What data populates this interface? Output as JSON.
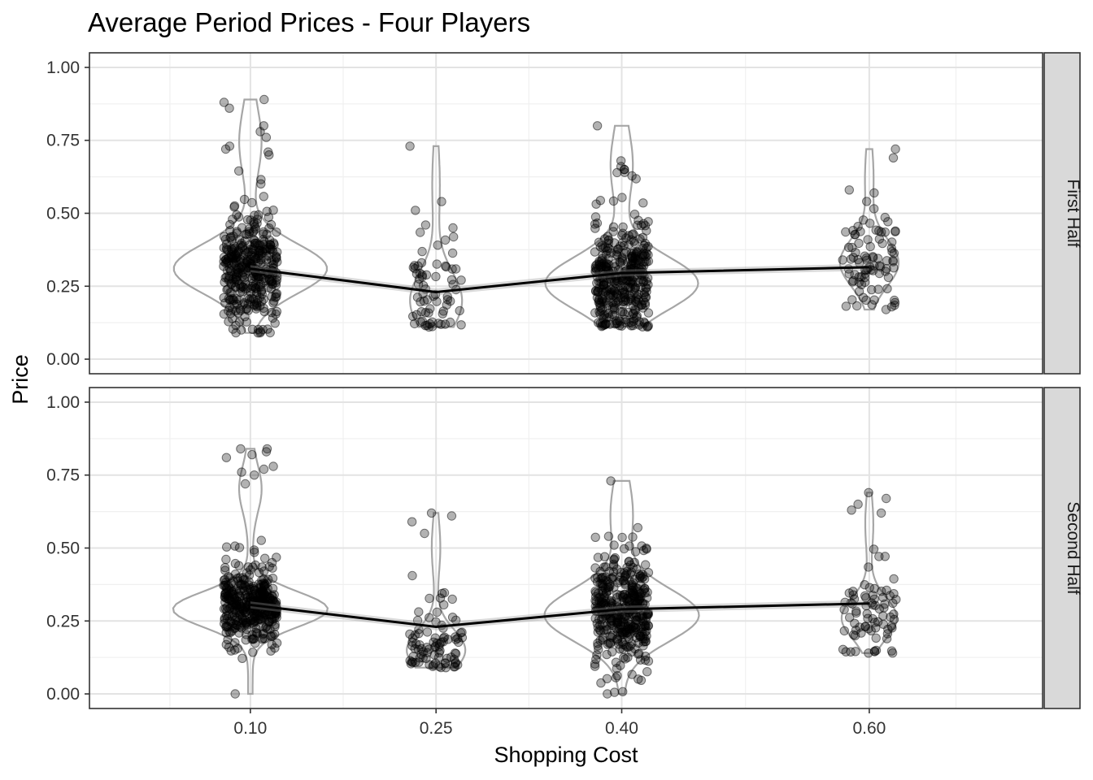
{
  "chart_data": {
    "type": "scatter",
    "title": "Average Period Prices - Four Players",
    "xlabel": "Shopping Cost",
    "ylabel": "Price",
    "categories": [
      "0.10",
      "0.25",
      "0.40",
      "0.60"
    ],
    "x_values": [
      0.1,
      0.25,
      0.4,
      0.6
    ],
    "xlim": [
      -0.03,
      0.74
    ],
    "ylim": [
      -0.05,
      1.05
    ],
    "y_ticks": [
      "0.00",
      "0.25",
      "0.50",
      "0.75",
      "1.00"
    ],
    "x_tick_values": [
      0.1,
      0.25,
      0.4,
      0.6
    ],
    "grid": true,
    "layers": [
      "violin",
      "jitter-points",
      "mean-line"
    ],
    "facets": [
      {
        "label": "First Half",
        "means": [
          0.31,
          0.23,
          0.295,
          0.315
        ],
        "clusters": [
          {
            "x": 0.1,
            "n": 380,
            "min": 0.09,
            "max": 0.89,
            "mode": 0.31,
            "spread": 0.085,
            "extreme_high": [
              0.89,
              0.88,
              0.86,
              0.8,
              0.78,
              0.76,
              0.73,
              0.72,
              0.71,
              0.7
            ]
          },
          {
            "x": 0.25,
            "n": 70,
            "min": 0.11,
            "max": 0.73,
            "mode": 0.2,
            "spread": 0.1,
            "extreme_high": [
              0.73,
              0.54,
              0.51,
              0.46,
              0.45
            ]
          },
          {
            "x": 0.4,
            "n": 380,
            "min": 0.11,
            "max": 0.8,
            "mode": 0.26,
            "spread": 0.09,
            "extreme_high": [
              0.8,
              0.68,
              0.66,
              0.65,
              0.65
            ]
          },
          {
            "x": 0.6,
            "n": 90,
            "min": 0.17,
            "max": 0.72,
            "mode": 0.33,
            "spread": 0.08,
            "extreme_high": [
              0.72,
              0.69,
              0.58,
              0.57
            ]
          }
        ]
      },
      {
        "label": "Second Half",
        "means": [
          0.305,
          0.23,
          0.29,
          0.31
        ],
        "clusters": [
          {
            "x": 0.1,
            "n": 400,
            "min": 0.0,
            "max": 0.84,
            "mode": 0.29,
            "spread": 0.06,
            "extreme_high": [
              0.84,
              0.84,
              0.83,
              0.82,
              0.81,
              0.78,
              0.77,
              0.76,
              0.75,
              0.72
            ]
          },
          {
            "x": 0.25,
            "n": 90,
            "min": 0.09,
            "max": 0.62,
            "mode": 0.15,
            "spread": 0.07,
            "extreme_high": [
              0.62,
              0.61,
              0.59,
              0.55
            ]
          },
          {
            "x": 0.4,
            "n": 400,
            "min": 0.0,
            "max": 0.73,
            "mode": 0.27,
            "spread": 0.09,
            "extreme_high": [
              0.73,
              0.57,
              0.54
            ]
          },
          {
            "x": 0.6,
            "n": 80,
            "min": 0.14,
            "max": 0.69,
            "mode": 0.26,
            "spread": 0.07,
            "extreme_high": [
              0.69,
              0.67,
              0.65,
              0.63,
              0.62
            ]
          }
        ]
      }
    ]
  }
}
